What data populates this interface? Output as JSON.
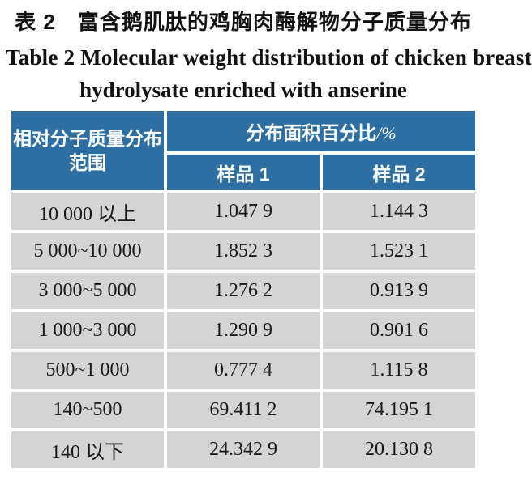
{
  "title": {
    "cn": "表 2　富含鹅肌肽的鸡胸肉酶解物分子质量分布",
    "en_line1": "Table 2  Molecular weight distribution of chicken breast",
    "en_line2": "hydrolysate enriched with anserine"
  },
  "table": {
    "header": {
      "range_label_line1": "相对分子质量分布",
      "range_label_line2": "范围",
      "area_label": "分布面积百分比",
      "area_unit": "/%",
      "sample1": "样品 1",
      "sample2": "样品 2"
    },
    "rows": [
      {
        "range": "10 000 以上",
        "s1": "1.047 9",
        "s2": "1.144 3"
      },
      {
        "range": "5 000~10 000",
        "s1": "1.852 3",
        "s2": "1.523 1"
      },
      {
        "range": "3 000~5 000",
        "s1": "1.276 2",
        "s2": "0.913 9"
      },
      {
        "range": "1 000~3 000",
        "s1": "1.290 9",
        "s2": "0.901 6"
      },
      {
        "range": "500~1 000",
        "s1": "0.777 4",
        "s2": "1.115 8"
      },
      {
        "range": "140~500",
        "s1": "69.411 2",
        "s2": "74.195 1"
      },
      {
        "range": "140 以下",
        "s1": "24.342 9",
        "s2": "20.130 8"
      }
    ],
    "colors": {
      "header_bg": "#2e6fa3",
      "header_text": "#ffffff",
      "row_bg": "#d4d4d4",
      "body_text": "#1a1a1a"
    }
  }
}
